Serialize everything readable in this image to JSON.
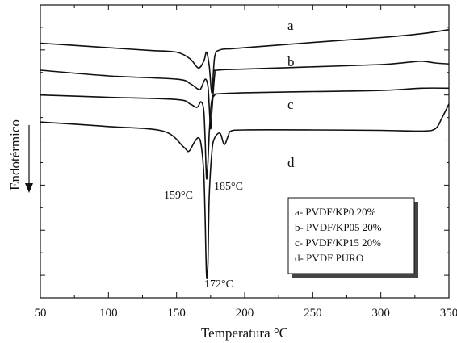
{
  "chart_data": {
    "type": "line",
    "title": "",
    "xlabel": "Temperatura °C",
    "ylabel": "Endotérmico",
    "xlim": [
      50,
      350
    ],
    "x_ticks": [
      50,
      100,
      150,
      200,
      250,
      300,
      350
    ],
    "y_ticks_labeled": false,
    "grid": false,
    "legend": {
      "placement": "lower-right",
      "entries": [
        "a- PVDF/KP0 20%",
        "b- PVDF/KP05 20%",
        "c- PVDF/KP15 20%",
        "d- PVDF PURO"
      ]
    },
    "annotations": [
      "159°C",
      "172°C",
      "185°C"
    ],
    "series": [
      {
        "name": "a",
        "x": [
          50,
          80,
          100,
          130,
          150,
          160,
          166,
          170,
          172,
          174,
          176,
          178,
          182,
          190,
          200,
          250,
          300,
          330,
          350
        ],
        "y": [
          58,
          56.8,
          56,
          54.8,
          54,
          51,
          47,
          50,
          54,
          48,
          36,
          52,
          55,
          55.5,
          56,
          58.3,
          60.5,
          62.2,
          64
        ]
      },
      {
        "name": "b",
        "x": [
          50,
          100,
          150,
          160,
          166,
          168,
          171,
          173,
          174,
          175,
          176,
          178,
          180,
          200,
          250,
          300,
          320,
          330,
          340,
          350
        ],
        "y": [
          46,
          43.5,
          42,
          40,
          37.5,
          38,
          42,
          39,
          30,
          20,
          28,
          44,
          46,
          46.5,
          47.5,
          48.5,
          49.5,
          50,
          49.2,
          48.8
        ]
      },
      {
        "name": "c",
        "x": [
          50,
          100,
          150,
          160,
          165,
          168,
          170,
          171,
          172,
          173,
          174,
          175,
          176,
          178,
          180,
          200,
          250,
          300,
          330,
          350
        ],
        "y": [
          35,
          34,
          33,
          31,
          29.5,
          32,
          28,
          15,
          -2,
          5,
          18,
          28,
          33,
          35,
          35.5,
          36,
          36.5,
          37,
          38,
          38
        ]
      },
      {
        "name": "d",
        "x": [
          50,
          100,
          140,
          155,
          159,
          163,
          166,
          168,
          170,
          171,
          172,
          173,
          174,
          176,
          178,
          182,
          185,
          188,
          190,
          200,
          250,
          300,
          330,
          340,
          345,
          350
        ],
        "y": [
          23,
          21,
          19,
          12,
          10,
          14,
          16,
          13,
          0,
          -20,
          -45,
          -40,
          -10,
          10,
          16,
          18,
          13,
          17,
          19,
          19.5,
          19.5,
          19.3,
          19,
          20,
          25,
          31
        ]
      }
    ]
  }
}
